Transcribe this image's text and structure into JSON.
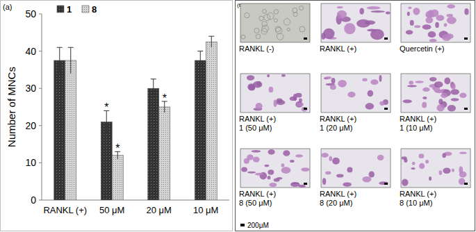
{
  "chart_data": {
    "type": "bar",
    "panel_label": "(a)",
    "y_label": "Number of MNCs",
    "categories": [
      "RANKL (+)",
      "50 μM",
      "20 μM",
      "10 μM"
    ],
    "series": [
      {
        "name": "1",
        "color": "#333333",
        "values": [
          37.5,
          21,
          30,
          37.5
        ],
        "errors": [
          3.5,
          3,
          2.5,
          2.5
        ]
      },
      {
        "name": "8",
        "color": "#d4d4d4",
        "values": [
          37.5,
          12,
          25,
          42.5
        ],
        "errors": [
          3.5,
          1,
          1.5,
          1.5
        ]
      }
    ],
    "annotations": [
      {
        "text": "*",
        "series": 0,
        "category": 1
      },
      {
        "text": "*",
        "series": 1,
        "category": 1
      },
      {
        "text": "*",
        "series": 1,
        "category": 2
      }
    ],
    "ylim": [
      0,
      50
    ],
    "yticks": [
      0,
      10,
      20,
      30,
      40,
      50
    ],
    "grid": false,
    "legend": "top"
  },
  "panel_b": {
    "panel_label": "(b)",
    "images": [
      {
        "label": [
          "RANKL (-)"
        ]
      },
      {
        "label": [
          "RANKL (+)"
        ]
      },
      {
        "label": [
          "Quercetin (+)"
        ]
      },
      {
        "label": [
          "RANKL (+)",
          "1 (50 μM)"
        ]
      },
      {
        "label": [
          "RANKL (+)",
          "1 (20 μM)"
        ]
      },
      {
        "label": [
          "RANKL (+)",
          "1 (10 μM)"
        ]
      },
      {
        "label": [
          "RANKL (+)",
          "8 (50 μM)"
        ]
      },
      {
        "label": [
          "RANKL (+)",
          "8 (20 μM)"
        ]
      },
      {
        "label": [
          "RANKL (+)",
          "8 (10 μM)"
        ]
      }
    ],
    "scale_bar": "200μM"
  }
}
